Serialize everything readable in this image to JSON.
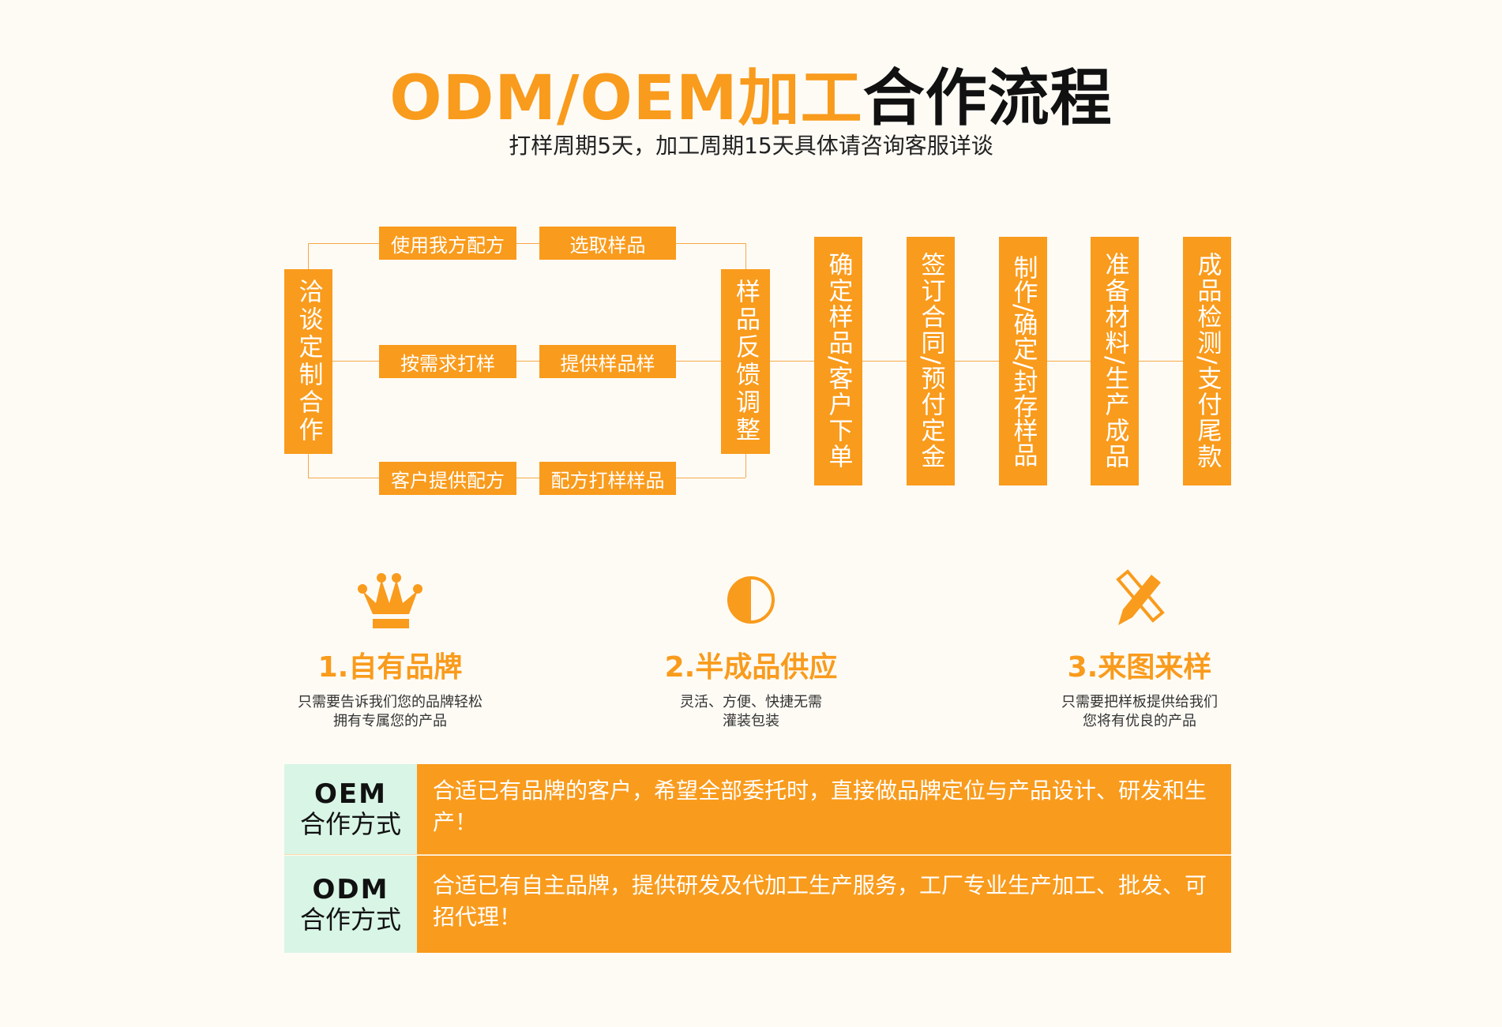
{
  "header": {
    "title_orange": "ODM/OEM加工",
    "title_black": "合作流程",
    "subtitle": "打样周期5天，加工周期15天具体请咨询客服详谈"
  },
  "flow": {
    "start": "洽谈定制合作",
    "branches": [
      [
        "使用我方配方",
        "选取样品"
      ],
      [
        "按需求打样",
        "提供样品样"
      ],
      [
        "客户提供配方",
        "配方打样样品"
      ]
    ],
    "feedback": "样品反馈调整",
    "steps": [
      "确定样品/客户下单",
      "签订合同/预付定金",
      "制作/确定/封存样品",
      "准备材料/生产成品",
      "成品检测/支付尾款"
    ]
  },
  "features": [
    {
      "icon": "crown-icon",
      "title": "1.自有品牌",
      "desc": [
        "只需要告诉我们您的品牌轻松",
        "拥有专属您的产品"
      ]
    },
    {
      "icon": "half-circle-icon",
      "title": "2.半成品供应",
      "desc": [
        "灵活、方便、快捷无需",
        "灌装包装"
      ]
    },
    {
      "icon": "pencil-ruler-icon",
      "title": "3.来图来样",
      "desc": [
        "只需要把样板提供给我们",
        "您将有优良的产品"
      ]
    }
  ],
  "modes": [
    {
      "code": "OEM",
      "label": "合作方式",
      "text": "合适已有品牌的客户，希望全部委托时，直接做品牌定位与产品设计、研发和生产！"
    },
    {
      "code": "ODM",
      "label": "合作方式",
      "text": "合适已有自主品牌，提供研发及代加工生产服务，工厂专业生产加工、批发、可招代理！"
    }
  ],
  "colors": {
    "accent": "#f99b1c",
    "mint": "#d8f5e6",
    "background": "#fefbf5"
  }
}
